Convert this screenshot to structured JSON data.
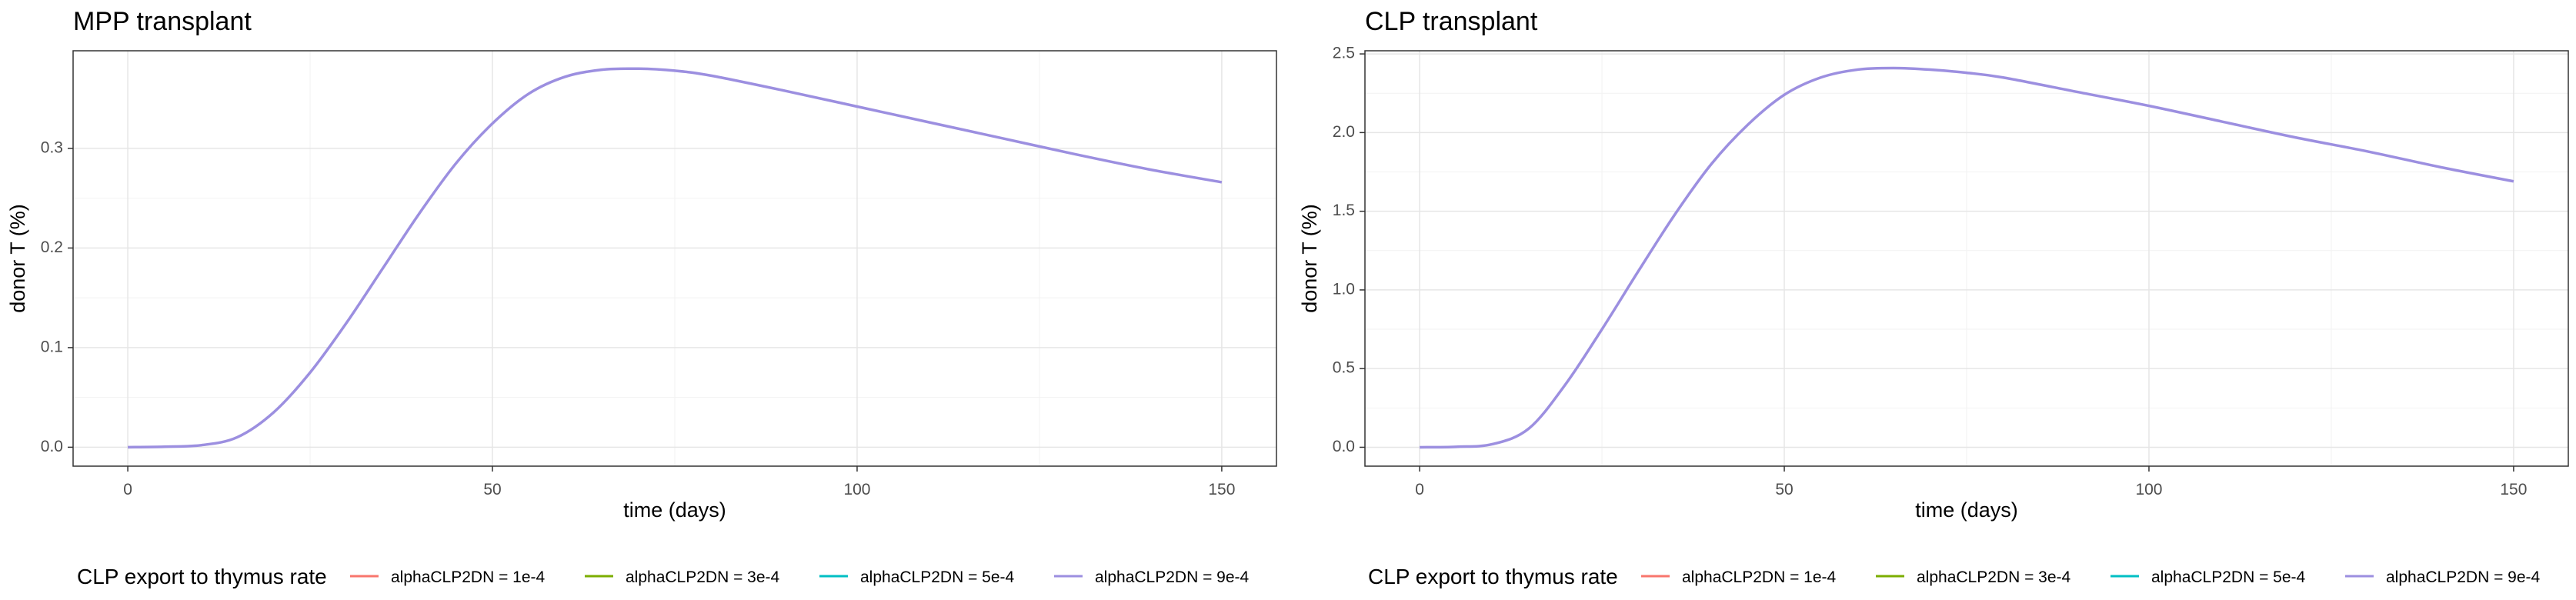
{
  "chart_data": [
    {
      "type": "line",
      "title": "MPP transplant",
      "xlabel": "time (days)",
      "ylabel": "donor T (%)",
      "xlim": [
        -7.5,
        157.5
      ],
      "ylim": [
        -0.019,
        0.398
      ],
      "xticks": [
        "0",
        "50",
        "100",
        "150"
      ],
      "yticks": [
        "0.0",
        "0.1",
        "0.2",
        "0.3"
      ],
      "grid": true,
      "legend_position": "bottom",
      "legend_title": "CLP export to thymus rate",
      "series": [
        {
          "name": "alphaCLP2DN = 1e-4",
          "color": "#F8766D",
          "x": [],
          "y": []
        },
        {
          "name": "alphaCLP2DN = 3e-4",
          "color": "#7CAE00",
          "x": [],
          "y": []
        },
        {
          "name": "alphaCLP2DN = 5e-4",
          "color": "#00BFC4",
          "x": [],
          "y": []
        },
        {
          "name": "alphaCLP2DN = 9e-4",
          "color": "#9C8FE0",
          "x": [
            0,
            5,
            10,
            15,
            20,
            25,
            30,
            35,
            40,
            45,
            50,
            55,
            60,
            65,
            70,
            75,
            80,
            90,
            100,
            110,
            120,
            130,
            140,
            150
          ],
          "y": [
            0.0,
            0.0005,
            0.002,
            0.01,
            0.035,
            0.075,
            0.125,
            0.18,
            0.235,
            0.285,
            0.325,
            0.355,
            0.372,
            0.379,
            0.38,
            0.378,
            0.373,
            0.358,
            0.342,
            0.326,
            0.31,
            0.294,
            0.279,
            0.266
          ]
        }
      ]
    },
    {
      "type": "line",
      "title": "CLP transplant",
      "xlabel": "time (days)",
      "ylabel": "donor T (%)",
      "xlim": [
        -7.5,
        157.5
      ],
      "ylim": [
        -0.12,
        2.52
      ],
      "xticks": [
        "0",
        "50",
        "100",
        "150"
      ],
      "yticks": [
        "0.0",
        "0.5",
        "1.0",
        "1.5",
        "2.0",
        "2.5"
      ],
      "grid": true,
      "legend_position": "bottom",
      "legend_title": "CLP export to thymus rate",
      "series": [
        {
          "name": "alphaCLP2DN = 1e-4",
          "color": "#F8766D",
          "x": [],
          "y": []
        },
        {
          "name": "alphaCLP2DN = 3e-4",
          "color": "#7CAE00",
          "x": [],
          "y": []
        },
        {
          "name": "alphaCLP2DN = 5e-4",
          "color": "#00BFC4",
          "x": [],
          "y": []
        },
        {
          "name": "alphaCLP2DN = 9e-4",
          "color": "#9C8FE0",
          "x": [
            0,
            5,
            10,
            15,
            20,
            25,
            30,
            35,
            40,
            45,
            50,
            55,
            60,
            65,
            70,
            75,
            80,
            90,
            100,
            110,
            120,
            130,
            140,
            150
          ],
          "y": [
            0.0,
            0.003,
            0.02,
            0.12,
            0.4,
            0.75,
            1.12,
            1.48,
            1.8,
            2.05,
            2.24,
            2.35,
            2.4,
            2.41,
            2.4,
            2.38,
            2.35,
            2.26,
            2.17,
            2.07,
            1.97,
            1.88,
            1.78,
            1.69
          ]
        }
      ]
    }
  ]
}
